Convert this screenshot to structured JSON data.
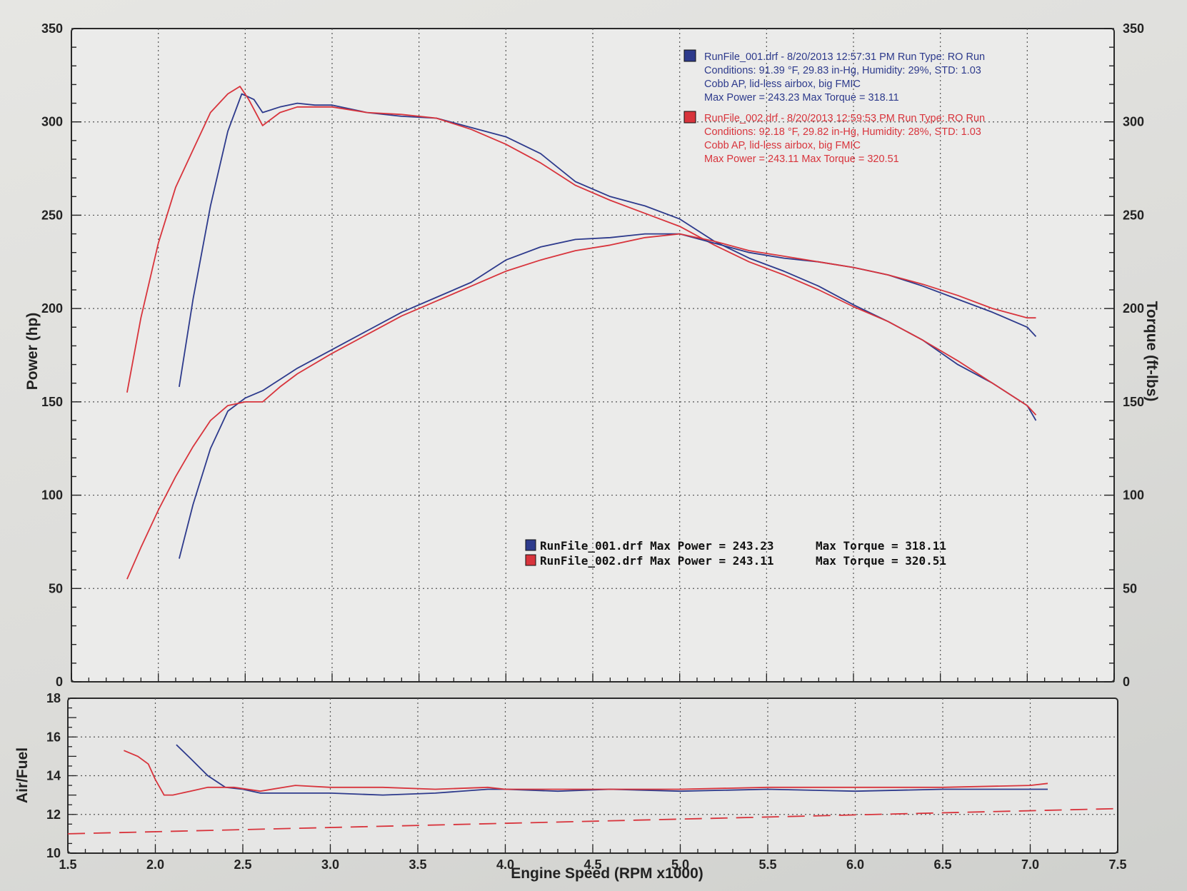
{
  "chart_data": [
    {
      "type": "line",
      "xlabel": "Engine Speed (RPM x1000)",
      "ylabel": "Power (hp)",
      "y2label": "Torque (ft-lbs)",
      "xlim": [
        1.5,
        7.5
      ],
      "ylim": [
        0,
        350
      ],
      "y2lim": [
        0,
        350
      ],
      "x_ticks": [
        "1.5",
        "2.0",
        "2.5",
        "3.0",
        "3.5",
        "4.0",
        "4.5",
        "5.0",
        "5.5",
        "6.0",
        "6.5",
        "7.0",
        "7.5"
      ],
      "y_ticks": [
        "0",
        "50",
        "100",
        "150",
        "200",
        "250",
        "300",
        "350"
      ],
      "y2_ticks": [
        "0",
        "50",
        "100",
        "150",
        "200",
        "250",
        "300",
        "350"
      ],
      "grid": true,
      "legend": [
        {
          "color": "#2d3a8c",
          "lines": [
            "RunFile_001.drf - 8/20/2013 12:57:31 PM  Run Type: RO  Run",
            "Conditions: 91.39 °F, 29.83 in-Hg,  Humidity:  29%, STD: 1.03",
            "Cobb AP, lid-less airbox, big FMIC",
            "Max Power = 243.23  Max Torque = 318.11"
          ]
        },
        {
          "color": "#d8343c",
          "lines": [
            "RunFile_002.drf - 8/20/2013 12:59:53 PM  Run Type: RO  Run",
            "Conditions: 92.18 °F, 29.82 in-Hg,  Humidity:  28%, STD: 1.03",
            "Cobb AP, lid-less airbox, big FMIC",
            "Max Power = 243.11  Max Torque = 320.51"
          ]
        }
      ],
      "summary": [
        {
          "text": "RunFile_001.drf Max Power = 243.23",
          "torque": "Max Torque = 318.11",
          "color": "#2d3a8c"
        },
        {
          "text": "RunFile_002.drf Max Power = 243.11",
          "torque": "Max Torque = 320.51",
          "color": "#d8343c"
        }
      ],
      "series": [
        {
          "curve": "torque",
          "run": 1,
          "color": "#2d3a8c",
          "x": [
            2.12,
            2.2,
            2.3,
            2.4,
            2.48,
            2.55,
            2.6,
            2.7,
            2.8,
            2.9,
            3.0,
            3.2,
            3.4,
            3.6,
            3.8,
            4.0,
            4.2,
            4.4,
            4.6,
            4.8,
            5.0,
            5.2,
            5.4,
            5.6,
            5.8,
            6.0,
            6.2,
            6.4,
            6.6,
            6.8,
            7.0,
            7.05
          ],
          "y": [
            158,
            205,
            255,
            295,
            315,
            312,
            305,
            308,
            310,
            309,
            309,
            305,
            303,
            302,
            297,
            292,
            283,
            268,
            260,
            255,
            248,
            236,
            227,
            220,
            212,
            202,
            193,
            183,
            170,
            160,
            148,
            140
          ]
        },
        {
          "curve": "torque",
          "run": 2,
          "color": "#d8343c",
          "x": [
            1.82,
            1.9,
            2.0,
            2.1,
            2.2,
            2.3,
            2.4,
            2.47,
            2.52,
            2.6,
            2.7,
            2.8,
            3.0,
            3.2,
            3.4,
            3.6,
            3.8,
            4.0,
            4.2,
            4.4,
            4.6,
            4.8,
            5.0,
            5.2,
            5.4,
            5.6,
            5.8,
            6.0,
            6.2,
            6.4,
            6.6,
            6.8,
            7.0,
            7.05
          ],
          "y": [
            155,
            195,
            235,
            265,
            285,
            305,
            315,
            319,
            312,
            298,
            305,
            308,
            308,
            305,
            304,
            302,
            296,
            288,
            278,
            266,
            258,
            251,
            244,
            234,
            225,
            218,
            210,
            201,
            193,
            183,
            172,
            160,
            148,
            143
          ]
        },
        {
          "curve": "power",
          "run": 1,
          "color": "#2d3a8c",
          "x": [
            2.12,
            2.2,
            2.3,
            2.4,
            2.5,
            2.6,
            2.7,
            2.8,
            3.0,
            3.2,
            3.4,
            3.6,
            3.8,
            4.0,
            4.2,
            4.4,
            4.6,
            4.8,
            5.0,
            5.2,
            5.4,
            5.6,
            5.8,
            6.0,
            6.2,
            6.4,
            6.6,
            6.8,
            7.0,
            7.05
          ],
          "y": [
            66,
            95,
            125,
            145,
            152,
            156,
            162,
            168,
            178,
            188,
            198,
            206,
            214,
            226,
            233,
            237,
            238,
            240,
            240,
            235,
            230,
            227,
            225,
            222,
            218,
            212,
            205,
            198,
            190,
            185
          ]
        },
        {
          "curve": "power",
          "run": 2,
          "color": "#d8343c",
          "x": [
            1.82,
            1.9,
            2.0,
            2.1,
            2.2,
            2.3,
            2.4,
            2.5,
            2.6,
            2.7,
            2.8,
            3.0,
            3.2,
            3.4,
            3.6,
            3.8,
            4.0,
            4.2,
            4.4,
            4.6,
            4.8,
            5.0,
            5.2,
            5.4,
            5.6,
            5.8,
            6.0,
            6.2,
            6.4,
            6.6,
            6.8,
            7.0,
            7.05
          ],
          "y": [
            55,
            72,
            92,
            110,
            126,
            140,
            148,
            150,
            150,
            158,
            165,
            176,
            186,
            196,
            204,
            212,
            220,
            226,
            231,
            234,
            238,
            240,
            236,
            231,
            228,
            225,
            222,
            218,
            213,
            207,
            200,
            195,
            195
          ]
        }
      ]
    },
    {
      "type": "line",
      "ylabel": "Air/Fuel",
      "xlim": [
        1.5,
        7.5
      ],
      "ylim": [
        10,
        18
      ],
      "y_ticks": [
        "10",
        "12",
        "14",
        "16",
        "18"
      ],
      "grid": true,
      "series": [
        {
          "run": 1,
          "color": "#2d3a8c",
          "x": [
            2.12,
            2.2,
            2.3,
            2.4,
            2.5,
            2.6,
            2.8,
            3.0,
            3.3,
            3.6,
            3.9,
            4.0,
            4.3,
            4.6,
            5.0,
            5.5,
            6.0,
            6.5,
            7.0,
            7.1
          ],
          "y": [
            15.6,
            14.9,
            14.0,
            13.4,
            13.3,
            13.1,
            13.1,
            13.1,
            13.0,
            13.1,
            13.3,
            13.3,
            13.2,
            13.3,
            13.2,
            13.3,
            13.2,
            13.3,
            13.3,
            13.3
          ]
        },
        {
          "run": 2,
          "color": "#d8343c",
          "x": [
            1.82,
            1.9,
            1.96,
            2.0,
            2.05,
            2.1,
            2.2,
            2.3,
            2.45,
            2.6,
            2.8,
            3.0,
            3.3,
            3.6,
            3.9,
            4.0,
            4.3,
            4.6,
            5.0,
            5.5,
            6.0,
            6.5,
            7.0,
            7.1
          ],
          "y": [
            15.3,
            15.0,
            14.6,
            13.8,
            13.0,
            13.0,
            13.2,
            13.4,
            13.4,
            13.2,
            13.5,
            13.4,
            13.4,
            13.3,
            13.4,
            13.3,
            13.3,
            13.3,
            13.3,
            13.4,
            13.4,
            13.4,
            13.5,
            13.6
          ]
        },
        {
          "run": "reference",
          "color": "#d8343c",
          "dashed": true,
          "x": [
            1.5,
            7.5
          ],
          "y": [
            11.0,
            12.3
          ]
        }
      ]
    }
  ]
}
